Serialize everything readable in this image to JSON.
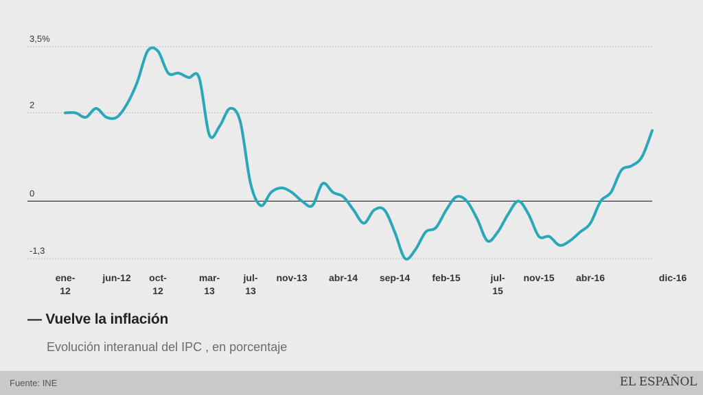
{
  "chart_data": {
    "type": "line",
    "title": "— Vuelve la inflación",
    "subtitle": "Evolución interanual del IPC , en porcentaje",
    "source": "Fuente: INE",
    "brand": "EL ESPAÑOL",
    "line_color": "#2aa7b8",
    "y_ticks": [
      {
        "value": 3.5,
        "label": "3,5%"
      },
      {
        "value": 2,
        "label": "2"
      },
      {
        "value": 0,
        "label": "0"
      },
      {
        "value": -1.3,
        "label": "-1,3"
      }
    ],
    "ylim": [
      -1.3,
      3.5
    ],
    "x_ticks": [
      {
        "index": 0,
        "label": [
          "ene-",
          "12"
        ]
      },
      {
        "index": 5,
        "label": [
          "jun-12"
        ]
      },
      {
        "index": 9,
        "label": [
          "oct-",
          "12"
        ]
      },
      {
        "index": 14,
        "label": [
          "mar-",
          "13"
        ]
      },
      {
        "index": 18,
        "label": [
          "jul-",
          "13"
        ]
      },
      {
        "index": 22,
        "label": [
          "nov-13"
        ]
      },
      {
        "index": 27,
        "label": [
          "abr-14"
        ]
      },
      {
        "index": 32,
        "label": [
          "sep-14"
        ]
      },
      {
        "index": 37,
        "label": [
          "feb-15"
        ]
      },
      {
        "index": 42,
        "label": [
          "jul-",
          "15"
        ]
      },
      {
        "index": 46,
        "label": [
          "nov-15"
        ]
      },
      {
        "index": 51,
        "label": [
          "abr-16"
        ]
      },
      {
        "index": 59,
        "label": [
          "dic-16"
        ]
      }
    ],
    "series": [
      {
        "values": [
          2.0,
          2.0,
          1.9,
          2.1,
          1.9,
          1.9,
          2.2,
          2.7,
          3.4,
          3.4,
          2.9,
          2.9,
          2.8,
          2.8,
          1.5,
          1.7,
          2.1,
          1.8,
          0.4,
          -0.1,
          0.2,
          0.3,
          0.2,
          0.0,
          -0.1,
          0.4,
          0.2,
          0.1,
          -0.2,
          -0.5,
          -0.2,
          -0.2,
          -0.7,
          -1.3,
          -1.1,
          -0.7,
          -0.6,
          -0.2,
          0.1,
          0.0,
          -0.4,
          -0.9,
          -0.7,
          -0.3,
          0.0,
          -0.3,
          -0.8,
          -0.8,
          -1.0,
          -0.9,
          -0.7,
          -0.5,
          0.0,
          0.2,
          0.7,
          0.8,
          1.0,
          1.6
        ]
      }
    ]
  }
}
